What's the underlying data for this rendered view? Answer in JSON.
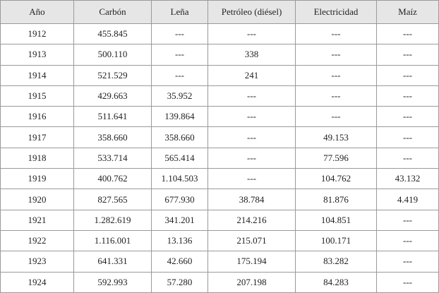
{
  "table": {
    "header": [
      "Año",
      "Carbón",
      "Leña",
      "Petróleo (diésel)",
      "Electricidad",
      "Maíz"
    ],
    "rows": [
      [
        "1912",
        "455.845",
        "---",
        "---",
        "---",
        "---"
      ],
      [
        "1913",
        "500.110",
        "---",
        "338",
        "---",
        "---"
      ],
      [
        "1914",
        "521.529",
        "---",
        "241",
        "---",
        "---"
      ],
      [
        "1915",
        "429.663",
        "35.952",
        "---",
        "---",
        "---"
      ],
      [
        "1916",
        "511.641",
        "139.864",
        "---",
        "---",
        "---"
      ],
      [
        "1917",
        "358.660",
        "358.660",
        "---",
        "49.153",
        "---"
      ],
      [
        "1918",
        "533.714",
        "565.414",
        "---",
        "77.596",
        "---"
      ],
      [
        "1919",
        "400.762",
        "1.104.503",
        "---",
        "104.762",
        "43.132"
      ],
      [
        "1920",
        "827.565",
        "677.930",
        "38.784",
        "81.876",
        "4.419"
      ],
      [
        "1921",
        "1.282.619",
        "341.201",
        "214.216",
        "104.851",
        "---"
      ],
      [
        "1922",
        "1.116.001",
        "13.136",
        "215.071",
        "100.171",
        "---"
      ],
      [
        "1923",
        "641.331",
        "42.660",
        "175.194",
        "83.282",
        "---"
      ],
      [
        "1924",
        "592.993",
        "57.280",
        "207.198",
        "84.283",
        "---"
      ]
    ]
  }
}
